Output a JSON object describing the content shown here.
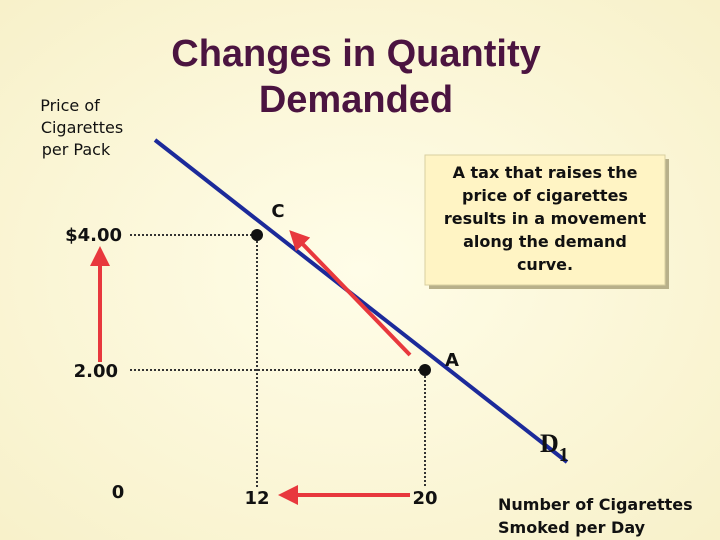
{
  "title": {
    "lines": [
      "Changes in Quantity",
      "Demanded"
    ]
  },
  "y_axis_label": {
    "lines": [
      "Price of",
      "Cigarettes",
      "per Pack"
    ]
  },
  "x_axis_label": {
    "lines": [
      "Number of Cigarettes",
      "Smoked per Day"
    ]
  },
  "y_ticks": [
    "$4.00",
    "2.00",
    "0"
  ],
  "x_ticks": [
    "12",
    "20"
  ],
  "points": [
    {
      "label": "C"
    },
    {
      "label": "A"
    }
  ],
  "curve_label": {
    "text": "D",
    "subscript": "1"
  },
  "annotation": {
    "lines": [
      "A tax that raises the",
      "price of cigarettes",
      "results in a movement",
      "along the demand",
      "curve."
    ]
  }
}
